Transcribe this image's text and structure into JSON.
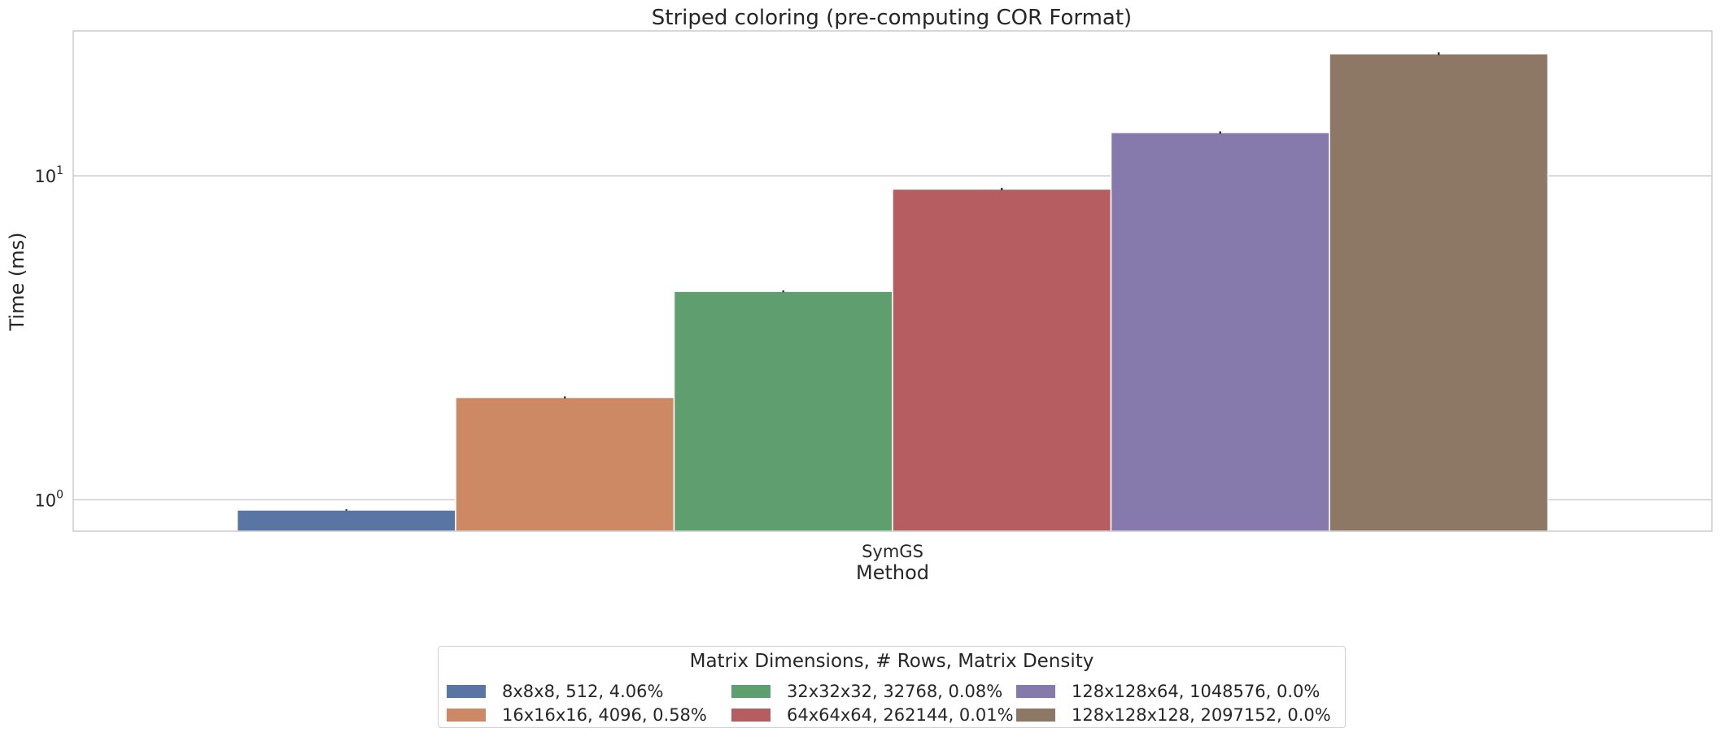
{
  "chart_data": {
    "type": "bar",
    "title": "Striped coloring (pre-computing COR Format)",
    "xlabel": "Method",
    "ylabel": "Time (ms)",
    "yscale": "log",
    "ylim": [
      0.8,
      28
    ],
    "yticks": [
      {
        "value": 1,
        "base": "10",
        "exp": "0"
      },
      {
        "value": 10,
        "base": "10",
        "exp": "1"
      }
    ],
    "categories": [
      "SymGS"
    ],
    "grid": true,
    "legend_title": "Matrix Dimensions, # Rows, Matrix Density",
    "legend_position": "bottom-center",
    "series": [
      {
        "name": "8x8x8, 512, 4.06%",
        "values": [
          0.93
        ],
        "error": [
          0.005
        ],
        "color": "#5875a4"
      },
      {
        "name": "16x16x16, 4096, 0.58%",
        "values": [
          2.07
        ],
        "error": [
          0.015
        ],
        "color": "#cc8963"
      },
      {
        "name": "32x32x32, 32768, 0.08%",
        "values": [
          4.4
        ],
        "error": [
          0.03
        ],
        "color": "#5f9e6e"
      },
      {
        "name": "64x64x64, 262144, 0.01%",
        "values": [
          9.1
        ],
        "error": [
          0.08
        ],
        "color": "#b55d60"
      },
      {
        "name": "128x128x64, 1048576, 0.0%",
        "values": [
          13.6
        ],
        "error": [
          0.12
        ],
        "color": "#857aab"
      },
      {
        "name": "128x128x128, 2097152, 0.0%",
        "values": [
          23.8
        ],
        "error": [
          0.25
        ],
        "color": "#8d7866"
      }
    ]
  }
}
